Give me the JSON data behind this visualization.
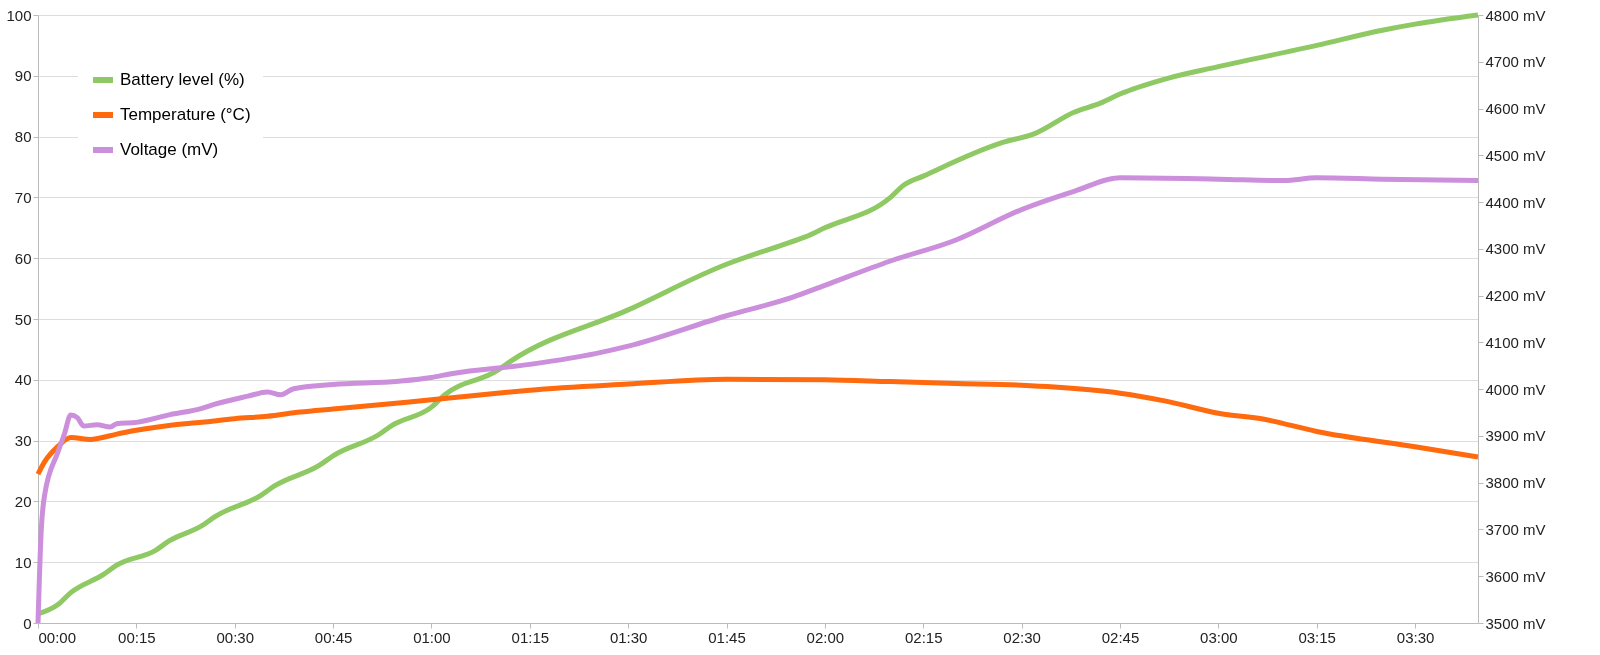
{
  "chart_data": {
    "type": "line",
    "xlim": [
      0,
      3.66
    ],
    "xticks": [
      {
        "value": 0,
        "label": "00:00"
      },
      {
        "value": 0.25,
        "label": "00:15"
      },
      {
        "value": 0.5,
        "label": "00:30"
      },
      {
        "value": 0.75,
        "label": "00:45"
      },
      {
        "value": 1,
        "label": "01:00"
      },
      {
        "value": 1.25,
        "label": "01:15"
      },
      {
        "value": 1.5,
        "label": "01:30"
      },
      {
        "value": 1.75,
        "label": "01:45"
      },
      {
        "value": 2,
        "label": "02:00"
      },
      {
        "value": 2.25,
        "label": "02:15"
      },
      {
        "value": 2.5,
        "label": "02:30"
      },
      {
        "value": 2.75,
        "label": "02:45"
      },
      {
        "value": 3,
        "label": "03:00"
      },
      {
        "value": 3.25,
        "label": "03:15"
      },
      {
        "value": 3.5,
        "label": "03:30"
      }
    ],
    "ylim": [
      0,
      100
    ],
    "yticks": [
      0,
      10,
      20,
      30,
      40,
      50,
      60,
      70,
      80,
      90,
      100
    ],
    "y2lim": [
      3500,
      4800
    ],
    "y2ticks": [
      {
        "value": 3500,
        "label": "3500 mV"
      },
      {
        "value": 3600,
        "label": "3600 mV"
      },
      {
        "value": 3700,
        "label": "3700 mV"
      },
      {
        "value": 3800,
        "label": "3800 mV"
      },
      {
        "value": 3900,
        "label": "3900 mV"
      },
      {
        "value": 4000,
        "label": "4000 mV"
      },
      {
        "value": 4100,
        "label": "4100 mV"
      },
      {
        "value": 4200,
        "label": "4200 mV"
      },
      {
        "value": 4300,
        "label": "4300 mV"
      },
      {
        "value": 4400,
        "label": "4400 mV"
      },
      {
        "value": 4500,
        "label": "4500 mV"
      },
      {
        "value": 4600,
        "label": "4600 mV"
      },
      {
        "value": 4700,
        "label": "4700 mV"
      },
      {
        "value": 4800,
        "label": "4800 mV"
      }
    ],
    "grid": "y",
    "legend": "top left",
    "marker": "none",
    "line_style": "solid",
    "series": [
      {
        "name": "Battery level (%)",
        "color": "#8fc963",
        "x": [
          0,
          0.05,
          0.0833,
          0.1667,
          0.2,
          0.3,
          0.3333,
          0.4167,
          0.45,
          0.5667,
          0.6,
          0.7167,
          0.75,
          0.8667,
          0.9,
          1,
          1.0333,
          1.1667,
          1.2,
          1.5,
          1.75,
          1.8833,
          1.95,
          2,
          2.1667,
          2.2,
          2.25,
          2.45,
          2.5333,
          2.6333,
          2.7,
          2.75,
          2.8667,
          3,
          3.25,
          3.4167,
          3.5,
          3.66
        ],
        "values": [
          1.5,
          3,
          5,
          8,
          9.5,
          12,
          13.5,
          16,
          17.5,
          21,
          22.5,
          26,
          27.5,
          31,
          32.5,
          35.5,
          37.5,
          41.5,
          43,
          51.5,
          59,
          62,
          63.5,
          65,
          70,
          72,
          73.5,
          79,
          80.5,
          84,
          85.5,
          87,
          89.5,
          91.5,
          95,
          97.5,
          98.5,
          100
        ]
      },
      {
        "name": "Temperature (°C)",
        "color": "#ff6a0e",
        "x": [
          0,
          0.0167,
          0.05,
          0.0833,
          0.1333,
          0.1833,
          0.2167,
          0.3333,
          0.4167,
          0.5,
          0.5833,
          0.6667,
          0.75,
          0.9167,
          1,
          1.1667,
          1.25,
          1.5,
          1.75,
          2,
          2.1667,
          2.3333,
          2.5,
          2.5833,
          2.75,
          2.8667,
          3,
          3.1167,
          3.25,
          3.5,
          3.66
        ],
        "values": [
          24.5,
          26.5,
          29,
          30.5,
          30.2,
          30.8,
          31.3,
          32.5,
          33,
          33.6,
          34,
          34.7,
          35.2,
          36.2,
          36.7,
          37.8,
          38.3,
          39.3,
          40.1,
          40,
          39.7,
          39.4,
          39.1,
          38.8,
          37.8,
          36.5,
          34.5,
          33.5,
          31.5,
          29,
          27.3
        ]
      },
      {
        "name": "Voltage (mV)",
        "color": "#cc8fdb",
        "axis": "y2",
        "x": [
          0,
          0.008,
          0.0167,
          0.05,
          0.0667,
          0.0833,
          0.1,
          0.1167,
          0.15,
          0.1833,
          0.2,
          0.25,
          0.3333,
          0.4167,
          0.45,
          0.5333,
          0.5833,
          0.6167,
          0.65,
          0.75,
          0.9167,
          1,
          1.05,
          1.25,
          1.4167,
          1.5,
          1.75,
          1.9167,
          2,
          2.1667,
          2.3333,
          2.5,
          2.6333,
          2.75,
          3,
          3.1667,
          3.25,
          3.4167,
          3.66
        ],
        "values": [
          3500,
          3695,
          3773,
          3864,
          3903,
          3945,
          3939,
          3921,
          3924,
          3919,
          3926,
          3929,
          3945,
          3959,
          3968,
          3985,
          3994,
          3988,
          4001,
          4010,
          4017,
          4025,
          4033,
          4053,
          4076,
          4092,
          4157,
          4196,
          4222,
          4274,
          4319,
          4384,
          4423,
          4452,
          4449,
          4446,
          4452,
          4449,
          4446
        ]
      }
    ]
  }
}
